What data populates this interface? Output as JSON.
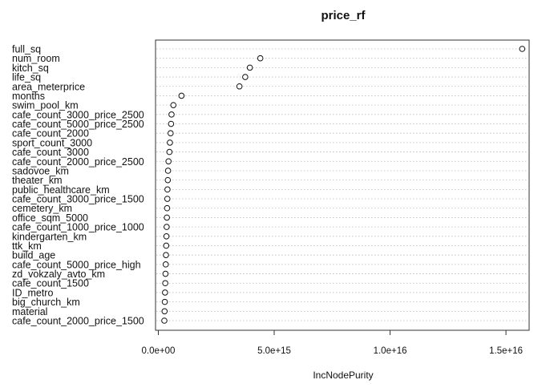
{
  "chart_data": {
    "type": "scatter",
    "title": "price_rf",
    "xlabel": "IncNodePurity",
    "ylabel": "",
    "xlim": [
      -120000000000000.0,
      1.6e+16
    ],
    "xticks": [
      {
        "value": 0,
        "label": "0.0e+00"
      },
      {
        "value": 5000000000000000.0,
        "label": "5.0e+15"
      },
      {
        "value": 1e+16,
        "label": "1.0e+16"
      },
      {
        "value": 1.5e+16,
        "label": "1.5e+16"
      }
    ],
    "grid": false,
    "guide_lines": "dotted",
    "points": [
      {
        "label": "full_sq",
        "value": 1.57e+16
      },
      {
        "label": "num_room",
        "value": 4400000000000000.0
      },
      {
        "label": "kitch_sq",
        "value": 3950000000000000.0
      },
      {
        "label": "life_sq",
        "value": 3750000000000000.0
      },
      {
        "label": "area_meterprice",
        "value": 3500000000000000.0
      },
      {
        "label": "months",
        "value": 1000000000000000.0
      },
      {
        "label": "swim_pool_km",
        "value": 650000000000000.0
      },
      {
        "label": "cafe_count_3000_price_2500",
        "value": 570000000000000.0
      },
      {
        "label": "cafe_count_5000_price_2500",
        "value": 550000000000000.0
      },
      {
        "label": "cafe_count_2000",
        "value": 530000000000000.0
      },
      {
        "label": "sport_count_3000",
        "value": 500000000000000.0
      },
      {
        "label": "cafe_count_3000",
        "value": 480000000000000.0
      },
      {
        "label": "cafe_count_2000_price_2500",
        "value": 440000000000000.0
      },
      {
        "label": "sadovoe_km",
        "value": 420000000000000.0
      },
      {
        "label": "theater_km",
        "value": 410000000000000.0
      },
      {
        "label": "public_healthcare_km",
        "value": 395000000000000.0
      },
      {
        "label": "cafe_count_3000_price_1500",
        "value": 390000000000000.0
      },
      {
        "label": "cemetery_km",
        "value": 380000000000000.0
      },
      {
        "label": "office_sqm_5000",
        "value": 370000000000000.0
      },
      {
        "label": "cafe_count_1000_price_1000",
        "value": 360000000000000.0
      },
      {
        "label": "kindergarten_km",
        "value": 350000000000000.0
      },
      {
        "label": "ttk_km",
        "value": 340000000000000.0
      },
      {
        "label": "build_age",
        "value": 330000000000000.0
      },
      {
        "label": "cafe_count_5000_price_high",
        "value": 320000000000000.0
      },
      {
        "label": "zd_vokzaly_avto_km",
        "value": 310000000000000.0
      },
      {
        "label": "cafe_count_1500",
        "value": 300000000000000.0
      },
      {
        "label": "ID_metro",
        "value": 290000000000000.0
      },
      {
        "label": "big_church_km",
        "value": 280000000000000.0
      },
      {
        "label": "material",
        "value": 270000000000000.0
      },
      {
        "label": "cafe_count_2000_price_1500",
        "value": 260000000000000.0
      }
    ]
  }
}
